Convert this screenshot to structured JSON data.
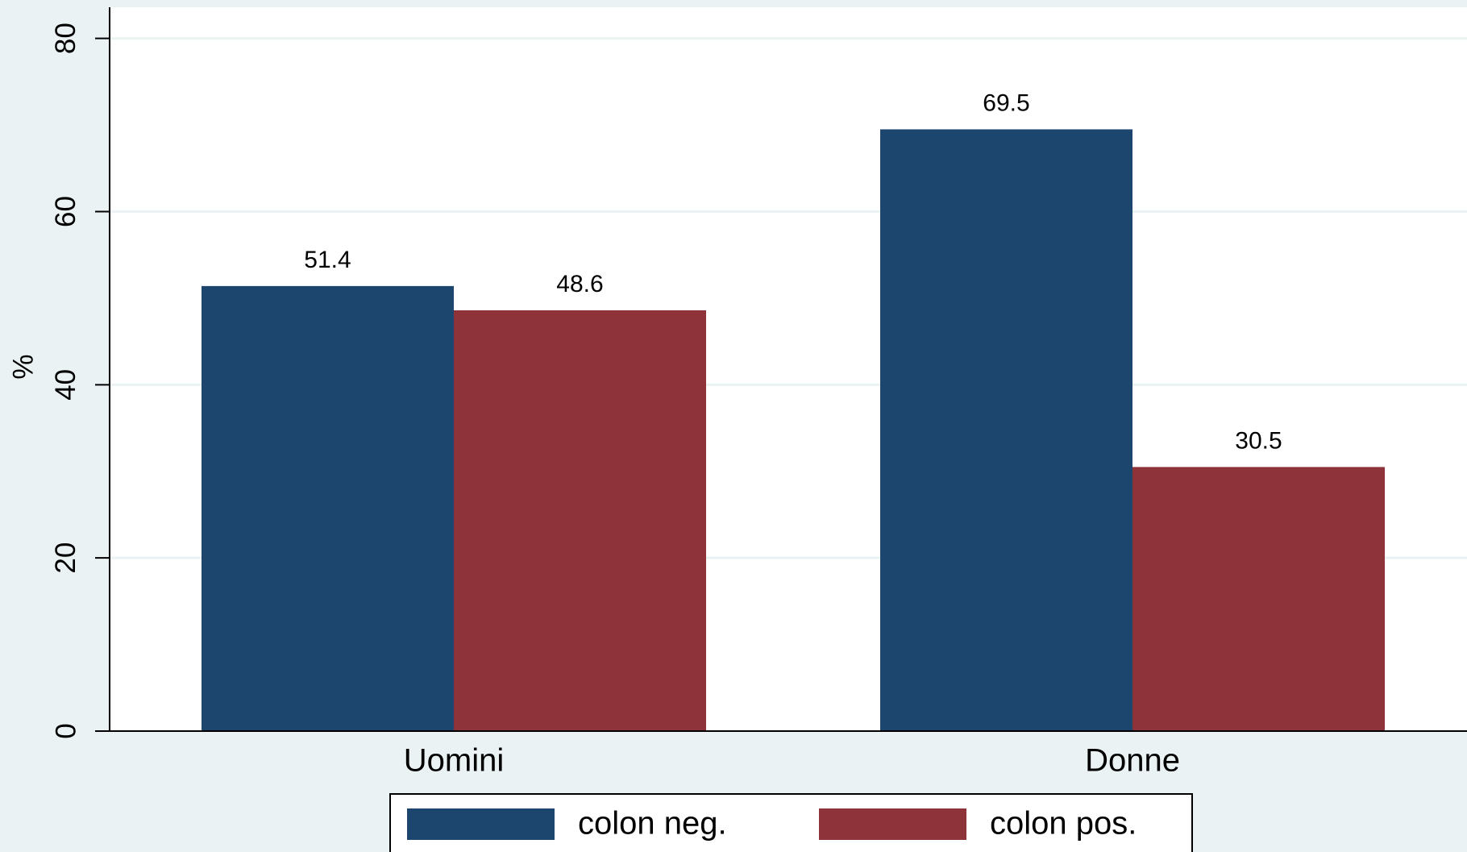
{
  "chart_data": {
    "type": "bar",
    "y_label": "%",
    "categories": [
      "Uomini",
      "Donne"
    ],
    "series": [
      {
        "name": "colon neg.",
        "color": "#1d466e",
        "values": [
          51.4,
          69.5
        ]
      },
      {
        "name": "colon pos.",
        "color": "#8e3339",
        "values": [
          48.6,
          30.5
        ]
      }
    ],
    "ylim": [
      0,
      83.6
    ],
    "yticks": [
      0,
      20,
      40,
      60,
      80
    ],
    "grid": true,
    "legend": "bottom"
  }
}
